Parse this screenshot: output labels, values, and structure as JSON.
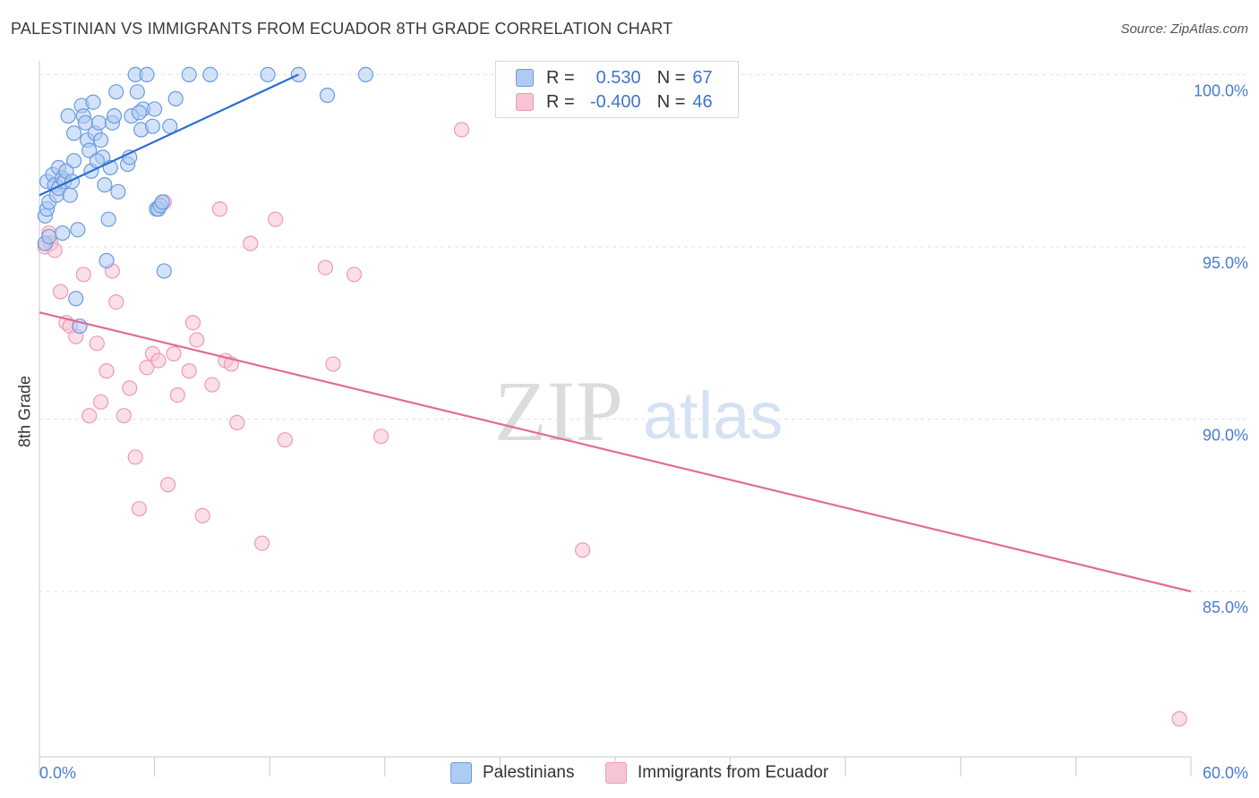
{
  "title": "PALESTINIAN VS IMMIGRANTS FROM ECUADOR 8TH GRADE CORRELATION CHART",
  "source": "Source: ZipAtlas.com",
  "watermark": {
    "zip": "ZIP",
    "atlas": "atlas"
  },
  "stats": {
    "r_label": "R =",
    "n_label": "N =",
    "series1": {
      "r": "0.530",
      "n": "67"
    },
    "series2": {
      "r": "-0.400",
      "n": "46"
    }
  },
  "legend": {
    "series1": "Palestinians",
    "series2": "Immigrants from Ecuador"
  },
  "colors": {
    "series1_fill": "#aecbf2",
    "series1_stroke": "#6a9be0",
    "series1_line": "#2a6fd0",
    "series2_fill": "#f7c4d4",
    "series2_stroke": "#ec9ab5",
    "series2_line": "#e06b98",
    "axis_text": "#4a7bd0",
    "grid": "#e3e3e3"
  },
  "chart_data": {
    "type": "scatter",
    "title": "PALESTINIAN VS IMMIGRANTS FROM ECUADOR 8TH GRADE CORRELATION CHART",
    "xlabel": "",
    "ylabel": "8th Grade",
    "xlim": [
      0,
      60
    ],
    "ylim": [
      80.2,
      100.4
    ],
    "x_tick_labels": [
      "0.0%",
      "60.0%"
    ],
    "y_ticks": [
      85,
      90,
      95,
      100
    ],
    "y_tick_labels": [
      "85.0%",
      "90.0%",
      "95.0%",
      "100.0%"
    ],
    "grid": true,
    "legend_position": "bottom",
    "series": [
      {
        "name": "Palestinians",
        "r": 0.53,
        "n": 67,
        "trend": {
          "x": [
            0,
            13.5
          ],
          "y": [
            96.5,
            100.0
          ]
        },
        "points": [
          [
            0.3,
            95.9
          ],
          [
            0.3,
            95.1
          ],
          [
            0.4,
            96.1
          ],
          [
            0.4,
            96.9
          ],
          [
            0.5,
            96.3
          ],
          [
            0.5,
            95.3
          ],
          [
            0.7,
            97.1
          ],
          [
            0.8,
            96.8
          ],
          [
            0.9,
            96.5
          ],
          [
            1.0,
            96.7
          ],
          [
            1.0,
            97.3
          ],
          [
            1.2,
            97.0
          ],
          [
            1.3,
            96.9
          ],
          [
            1.4,
            97.2
          ],
          [
            1.2,
            95.4
          ],
          [
            1.5,
            98.8
          ],
          [
            1.6,
            96.5
          ],
          [
            1.7,
            96.9
          ],
          [
            1.8,
            97.5
          ],
          [
            1.8,
            98.3
          ],
          [
            1.9,
            93.5
          ],
          [
            2.0,
            95.5
          ],
          [
            2.1,
            92.7
          ],
          [
            2.2,
            99.1
          ],
          [
            2.3,
            98.8
          ],
          [
            2.4,
            98.6
          ],
          [
            2.5,
            98.1
          ],
          [
            2.6,
            97.8
          ],
          [
            2.7,
            97.2
          ],
          [
            2.8,
            99.2
          ],
          [
            2.9,
            98.3
          ],
          [
            3.1,
            98.6
          ],
          [
            3.2,
            98.1
          ],
          [
            3.3,
            97.6
          ],
          [
            3.4,
            96.8
          ],
          [
            3.5,
            94.6
          ],
          [
            3.6,
            95.8
          ],
          [
            3.7,
            97.3
          ],
          [
            3.8,
            98.6
          ],
          [
            3.9,
            98.8
          ],
          [
            4.0,
            99.5
          ],
          [
            4.1,
            96.6
          ],
          [
            4.6,
            97.4
          ],
          [
            4.7,
            97.6
          ],
          [
            4.8,
            98.8
          ],
          [
            5.0,
            100.0
          ],
          [
            5.1,
            99.5
          ],
          [
            5.3,
            98.4
          ],
          [
            5.4,
            99.0
          ],
          [
            5.6,
            100.0
          ],
          [
            5.9,
            98.5
          ],
          [
            6.0,
            99.0
          ],
          [
            6.1,
            96.1
          ],
          [
            6.2,
            96.1
          ],
          [
            6.3,
            96.2
          ],
          [
            6.4,
            96.3
          ],
          [
            6.5,
            94.3
          ],
          [
            6.8,
            98.5
          ],
          [
            7.1,
            99.3
          ],
          [
            7.8,
            100.0
          ],
          [
            8.9,
            100.0
          ],
          [
            11.9,
            100.0
          ],
          [
            13.5,
            100.0
          ],
          [
            15.0,
            99.4
          ],
          [
            17.0,
            100.0
          ],
          [
            5.2,
            98.9
          ],
          [
            3.0,
            97.5
          ]
        ]
      },
      {
        "name": "Immigrants from Ecuador",
        "r": -0.4,
        "n": 46,
        "trend": {
          "x": [
            0,
            60
          ],
          "y": [
            93.1,
            85.0
          ]
        },
        "points": [
          [
            0.3,
            95.0
          ],
          [
            0.5,
            95.4
          ],
          [
            0.6,
            95.1
          ],
          [
            0.8,
            94.9
          ],
          [
            1.1,
            93.7
          ],
          [
            1.4,
            92.8
          ],
          [
            1.6,
            92.7
          ],
          [
            1.9,
            92.4
          ],
          [
            2.3,
            94.2
          ],
          [
            2.6,
            90.1
          ],
          [
            3.0,
            92.2
          ],
          [
            3.2,
            90.5
          ],
          [
            3.5,
            91.4
          ],
          [
            3.8,
            94.3
          ],
          [
            4.0,
            93.4
          ],
          [
            4.4,
            90.1
          ],
          [
            4.7,
            90.9
          ],
          [
            5.0,
            88.9
          ],
          [
            5.2,
            87.4
          ],
          [
            5.6,
            91.5
          ],
          [
            5.9,
            91.9
          ],
          [
            6.2,
            91.7
          ],
          [
            6.5,
            96.3
          ],
          [
            6.7,
            88.1
          ],
          [
            7.0,
            91.9
          ],
          [
            7.2,
            90.7
          ],
          [
            7.8,
            91.4
          ],
          [
            8.0,
            92.8
          ],
          [
            8.2,
            92.3
          ],
          [
            8.5,
            87.2
          ],
          [
            9.0,
            91.0
          ],
          [
            9.4,
            96.1
          ],
          [
            9.7,
            91.7
          ],
          [
            10.0,
            91.6
          ],
          [
            10.3,
            89.9
          ],
          [
            11.0,
            95.1
          ],
          [
            11.6,
            86.4
          ],
          [
            12.3,
            95.8
          ],
          [
            12.8,
            89.4
          ],
          [
            14.9,
            94.4
          ],
          [
            15.3,
            91.6
          ],
          [
            16.4,
            94.2
          ],
          [
            17.8,
            89.5
          ],
          [
            22.0,
            98.4
          ],
          [
            28.3,
            86.2
          ],
          [
            59.4,
            81.3
          ]
        ]
      }
    ]
  }
}
